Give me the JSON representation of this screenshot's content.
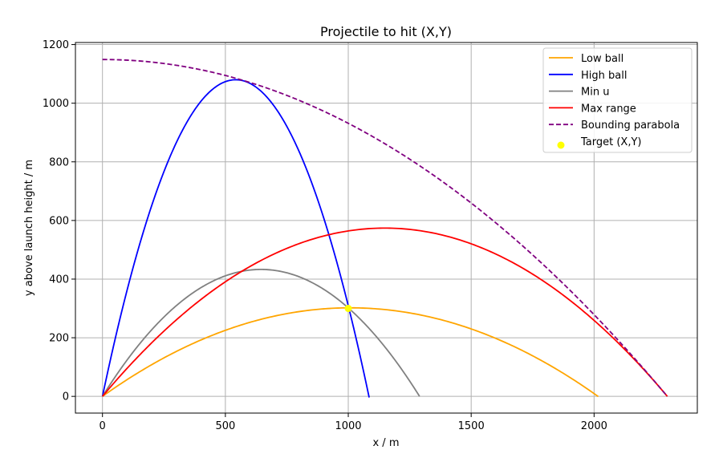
{
  "chart_data": {
    "type": "line",
    "title": "Projectile to hit (X,Y)",
    "xlabel": "x / m",
    "ylabel": "y above launch height / m",
    "xlim": [
      -110,
      2420
    ],
    "ylim": [
      -57,
      1207
    ],
    "xticks": [
      0,
      500,
      1000,
      1500,
      2000
    ],
    "yticks": [
      0,
      200,
      400,
      600,
      800,
      1000,
      1200
    ],
    "grid": true,
    "legend_position": "top-right",
    "series": [
      {
        "name": "Low ball",
        "color": "#ffa500",
        "style": "solid",
        "curve": {
          "x_start": 0,
          "x_end": 2017,
          "vertex_x": 1008,
          "vertex_y": 302
        }
      },
      {
        "name": "High ball",
        "color": "#0000ff",
        "style": "solid",
        "curve": {
          "x_start": 0,
          "x_end": 1085,
          "vertex_x": 542,
          "vertex_y": 1080
        }
      },
      {
        "name": "Min u",
        "color": "#808080",
        "style": "solid",
        "curve": {
          "x_start": 0,
          "x_end": 1290,
          "vertex_x": 645,
          "vertex_y": 433
        }
      },
      {
        "name": "Max range",
        "color": "#ff0000",
        "style": "solid",
        "curve": {
          "x_start": 0,
          "x_end": 2298,
          "vertex_x": 1149,
          "vertex_y": 574
        }
      },
      {
        "name": "Bounding parabola",
        "color": "#800080",
        "style": "dashed",
        "curve": {
          "x_start": 0,
          "x_end": 2298,
          "vertex_x": 0,
          "vertex_y": 1149
        }
      }
    ],
    "target": {
      "name": "Target (X,Y)",
      "color": "#ffff00",
      "x": 1000,
      "y": 300
    }
  }
}
